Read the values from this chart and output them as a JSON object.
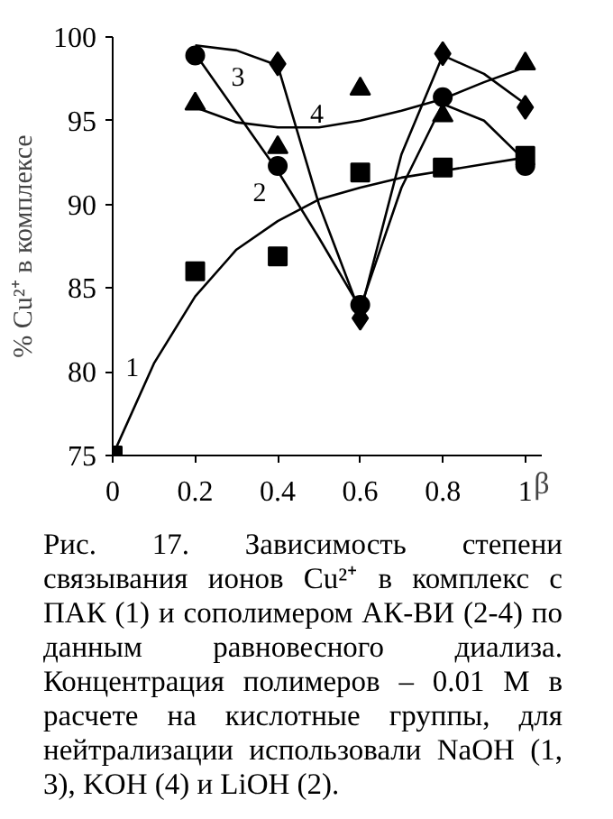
{
  "chart_data": {
    "type": "scatter",
    "xlabel": "β",
    "ylabel": "% Cu²⁺ в комплексе",
    "xlim": [
      0,
      1.04
    ],
    "ylim": [
      75,
      100
    ],
    "xticks": [
      0,
      0.2,
      0.4,
      0.6,
      0.8,
      1
    ],
    "yticks": [
      75,
      80,
      85,
      90,
      95,
      100
    ],
    "grid": false,
    "series": [
      {
        "marker": "square",
        "color": "#000000",
        "x": [
          0,
          0.2,
          0.4,
          0.6,
          0.8,
          1
        ],
        "values": [
          75,
          86,
          86.9,
          91.9,
          92.2,
          92.9
        ]
      },
      {
        "marker": "circle",
        "color": "#000000",
        "x": [
          0.2,
          0.4,
          0.6,
          0.8,
          1
        ],
        "values": [
          98.9,
          92.3,
          84,
          96.4,
          92.3
        ]
      },
      {
        "marker": "diamond",
        "color": "#000000",
        "x": [
          0.4,
          0.6,
          0.8,
          1
        ],
        "values": [
          98.4,
          83.2,
          99,
          95.8
        ]
      },
      {
        "marker": "triangle",
        "color": "#000000",
        "x": [
          0.2,
          0.4,
          0.6,
          0.8,
          1
        ],
        "values": [
          96,
          93.4,
          96.9,
          95.3,
          98.4
        ]
      },
      {
        "type": "line",
        "name": "1",
        "color": "#000000",
        "x": [
          0,
          0.1,
          0.2,
          0.3,
          0.4,
          0.5,
          0.6,
          0.7,
          0.8,
          0.9,
          1
        ],
        "values": [
          75,
          80.5,
          84.5,
          87.3,
          89,
          90.3,
          91,
          91.6,
          92,
          92.4,
          92.8
        ]
      },
      {
        "type": "line",
        "name": "2",
        "color": "#000000",
        "x": [
          0.2,
          0.3,
          0.4,
          0.5,
          0.6,
          0.7,
          0.8,
          0.9,
          1
        ],
        "values": [
          99,
          95.5,
          92,
          88,
          83.8,
          91,
          96,
          95,
          92.6
        ]
      },
      {
        "type": "line",
        "name": "3",
        "color": "#000000",
        "x": [
          0.2,
          0.3,
          0.4,
          0.5,
          0.6,
          0.7,
          0.8,
          0.9,
          1
        ],
        "values": [
          99.5,
          99.2,
          98.3,
          90,
          83.5,
          93,
          98.9,
          97.8,
          96
        ]
      },
      {
        "type": "line",
        "name": "4",
        "color": "#000000",
        "x": [
          0.2,
          0.3,
          0.4,
          0.5,
          0.6,
          0.7,
          0.8,
          0.9,
          1
        ],
        "values": [
          95.8,
          94.9,
          94.6,
          94.6,
          95,
          95.6,
          96.3,
          97.3,
          98.2
        ]
      }
    ],
    "annotations": [
      "Рис. 17. Зависимость степени связывания ионов Cu²⁺ в комплекс с ПАК (1) и сополимером АК-ВИ (2-4) по данным равновесного диализа. Концентрация полимеров – 0.01 М в расчете на кислотные группы, для нейтрализации использовали NaOH (1, 3), KOH (4) и LiOH (2)."
    ]
  }
}
